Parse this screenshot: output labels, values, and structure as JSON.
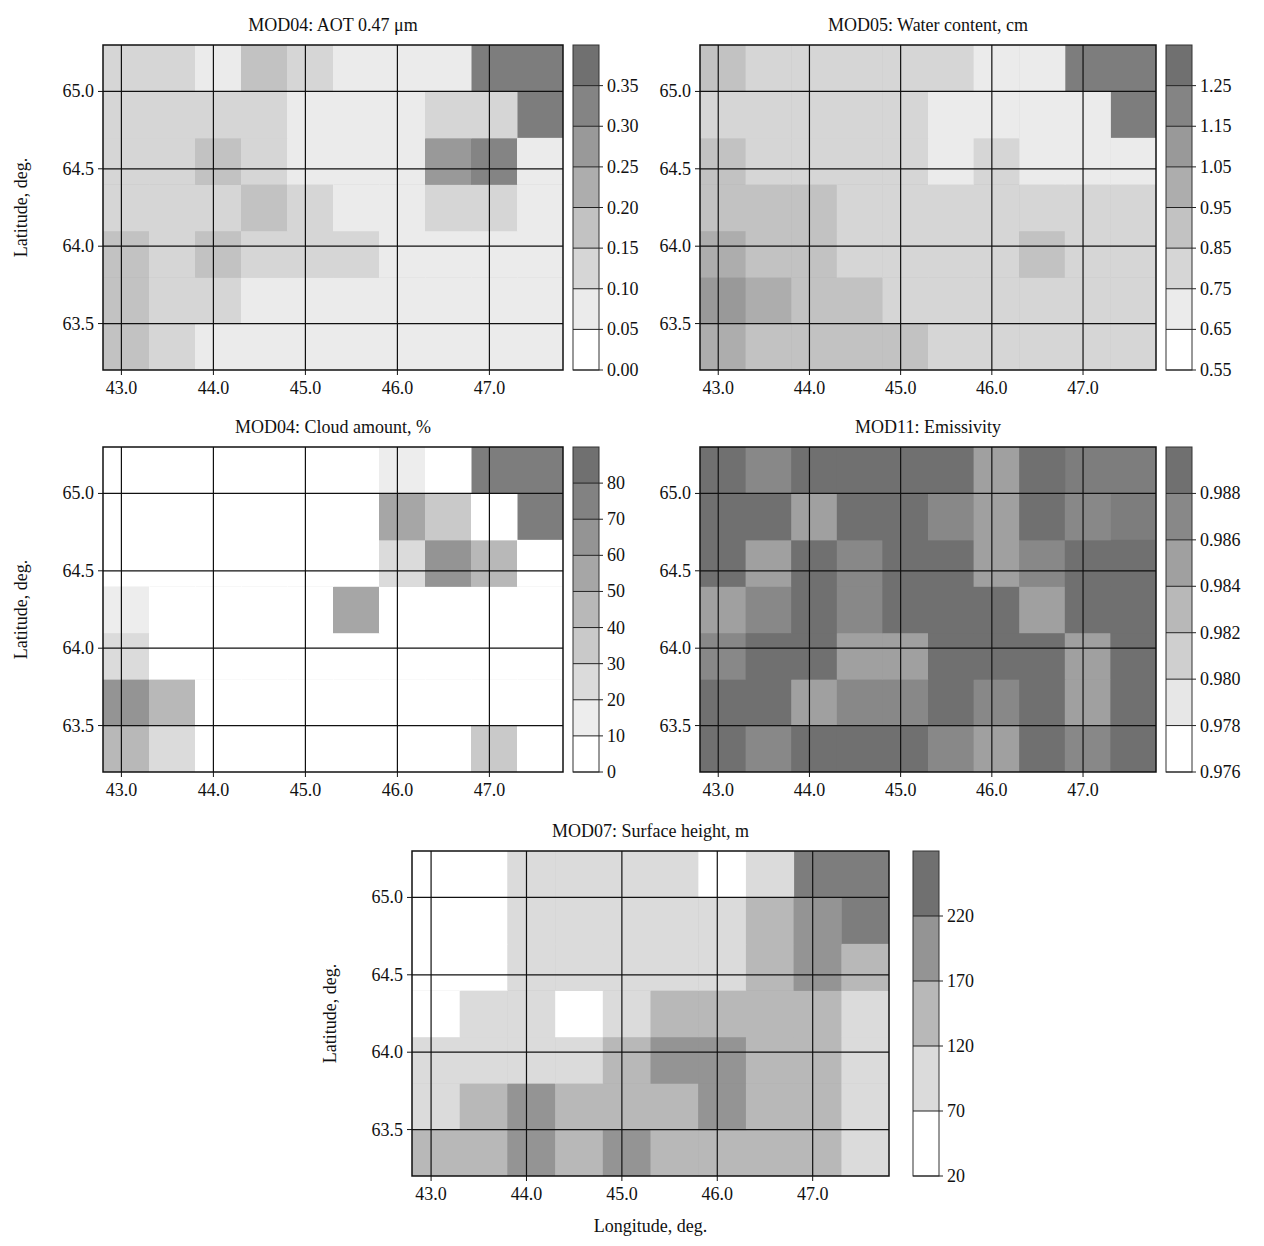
{
  "chart_data": [
    {
      "type": "contour",
      "title": "MOD04: AOT 0.47 μm",
      "ylabel": "Latitude, deg.",
      "grid": true,
      "xlim": [
        42.8,
        47.8
      ],
      "ylim": [
        63.2,
        65.3
      ],
      "xticks": [
        {
          "value": 43,
          "label": "43.0"
        },
        {
          "value": 44,
          "label": "44.0"
        },
        {
          "value": 45,
          "label": "45.0"
        },
        {
          "value": 46,
          "label": "46.0"
        },
        {
          "value": 47,
          "label": "47.0"
        }
      ],
      "yticks": [
        63.5,
        {
          "value": 64,
          "label": "64.0"
        },
        64.5,
        {
          "value": 65,
          "label": "65.0"
        }
      ],
      "x": [
        43.05,
        43.55,
        44.05,
        44.55,
        45.05,
        45.55,
        46.05,
        46.55,
        47.05,
        47.55
      ],
      "y": [
        63.35,
        63.65,
        63.95,
        64.25,
        64.55,
        64.85,
        65.15
      ],
      "cells": [
        [
          0.15,
          0.1,
          0.08,
          0.07,
          0.07,
          0.08,
          0.07,
          0.07,
          0.07,
          0.07
        ],
        [
          0.15,
          0.12,
          0.1,
          0.08,
          0.07,
          0.07,
          0.07,
          0.07,
          0.07,
          0.07
        ],
        [
          0.17,
          0.12,
          0.17,
          0.12,
          0.1,
          0.12,
          0.08,
          0.07,
          0.07,
          0.07
        ],
        [
          0.13,
          0.12,
          0.12,
          0.15,
          0.1,
          0.08,
          0.08,
          0.1,
          0.12,
          0.07
        ],
        [
          0.12,
          0.13,
          0.15,
          0.12,
          0.08,
          0.07,
          0.08,
          0.25,
          0.33,
          0.07
        ],
        [
          0.1,
          0.1,
          0.12,
          0.13,
          0.08,
          0.07,
          0.07,
          0.1,
          0.1,
          null
        ],
        [
          0.1,
          0.1,
          0.08,
          0.15,
          0.12,
          0.08,
          0.07,
          0.07,
          null,
          null
        ]
      ],
      "colorbar": {
        "range": [
          0,
          0.4
        ],
        "ticks": [
          {
            "value": 0,
            "label": "0.00"
          },
          0.05,
          {
            "value": 0.1,
            "label": "0.10"
          },
          0.15,
          {
            "value": 0.2,
            "label": "0.20"
          },
          0.25,
          {
            "value": 0.3,
            "label": "0.30"
          },
          0.35
        ]
      }
    },
    {
      "type": "contour",
      "title": "MOD05: Water content, cm",
      "grid": true,
      "xlim": [
        42.8,
        47.8
      ],
      "ylim": [
        63.2,
        65.3
      ],
      "xticks": [
        {
          "value": 43,
          "label": "43.0"
        },
        {
          "value": 44,
          "label": "44.0"
        },
        {
          "value": 45,
          "label": "45.0"
        },
        {
          "value": 46,
          "label": "46.0"
        },
        {
          "value": 47,
          "label": "47.0"
        }
      ],
      "yticks": [
        63.5,
        {
          "value": 64,
          "label": "64.0"
        },
        64.5,
        {
          "value": 65,
          "label": "65.0"
        }
      ],
      "x": [
        43.05,
        43.55,
        44.05,
        44.55,
        45.05,
        45.55,
        46.05,
        46.55,
        47.05,
        47.55
      ],
      "y": [
        63.35,
        63.65,
        63.95,
        64.25,
        64.55,
        64.85,
        65.15
      ],
      "cells": [
        [
          1.0,
          0.9,
          0.85,
          0.85,
          0.85,
          0.8,
          0.8,
          0.8,
          0.8,
          0.8
        ],
        [
          1.05,
          0.95,
          0.85,
          0.85,
          0.8,
          0.8,
          0.8,
          0.8,
          0.8,
          0.75
        ],
        [
          0.95,
          0.9,
          0.85,
          0.8,
          0.8,
          0.78,
          0.8,
          0.85,
          0.8,
          0.75
        ],
        [
          0.9,
          0.85,
          0.85,
          0.8,
          0.78,
          0.75,
          0.78,
          0.8,
          0.75,
          0.75
        ],
        [
          0.85,
          0.8,
          0.8,
          0.8,
          0.75,
          0.72,
          0.75,
          0.72,
          0.7,
          0.7
        ],
        [
          0.8,
          0.8,
          0.78,
          0.78,
          0.75,
          0.72,
          0.7,
          0.7,
          0.7,
          null
        ],
        [
          0.85,
          0.8,
          0.8,
          0.78,
          0.78,
          0.75,
          0.72,
          0.7,
          null,
          null
        ]
      ],
      "colorbar": {
        "range": [
          0.55,
          1.35
        ],
        "ticks": [
          0.55,
          0.65,
          0.75,
          0.85,
          0.95,
          1.05,
          1.15,
          1.25
        ]
      }
    },
    {
      "type": "contour",
      "title": "MOD04: Cloud amount, %",
      "ylabel": "Latitude, deg.",
      "grid": true,
      "xlim": [
        42.8,
        47.8
      ],
      "ylim": [
        63.2,
        65.3
      ],
      "xticks": [
        {
          "value": 43,
          "label": "43.0"
        },
        {
          "value": 44,
          "label": "44.0"
        },
        {
          "value": 45,
          "label": "45.0"
        },
        {
          "value": 46,
          "label": "46.0"
        },
        {
          "value": 47,
          "label": "47.0"
        }
      ],
      "yticks": [
        63.5,
        {
          "value": 64,
          "label": "64.0"
        },
        64.5,
        {
          "value": 65,
          "label": "65.0"
        }
      ],
      "x": [
        43.05,
        43.55,
        44.05,
        44.55,
        45.05,
        45.55,
        46.05,
        46.55,
        47.05,
        47.55
      ],
      "y": [
        63.35,
        63.65,
        63.95,
        64.25,
        64.55,
        64.85,
        65.15
      ],
      "cells": [
        [
          40,
          20,
          0,
          0,
          0,
          0,
          0,
          0,
          30,
          0
        ],
        [
          60,
          40,
          0,
          0,
          0,
          0,
          0,
          0,
          0,
          0
        ],
        [
          20,
          0,
          0,
          0,
          0,
          0,
          0,
          0,
          0,
          0
        ],
        [
          10,
          0,
          0,
          0,
          0,
          50,
          0,
          0,
          0,
          0
        ],
        [
          0,
          0,
          0,
          0,
          0,
          0,
          20,
          60,
          40,
          0
        ],
        [
          0,
          0,
          0,
          0,
          0,
          0,
          50,
          30,
          0,
          null
        ],
        [
          0,
          0,
          0,
          0,
          0,
          0,
          10,
          0,
          null,
          null
        ]
      ],
      "colorbar": {
        "range": [
          0,
          90
        ],
        "ticks": [
          0,
          10,
          20,
          30,
          40,
          50,
          60,
          70,
          80
        ]
      }
    },
    {
      "type": "contour",
      "title": "MOD11: Emissivity",
      "grid": true,
      "xlim": [
        42.8,
        47.8
      ],
      "ylim": [
        63.2,
        65.3
      ],
      "xticks": [
        {
          "value": 43,
          "label": "43.0"
        },
        {
          "value": 44,
          "label": "44.0"
        },
        {
          "value": 45,
          "label": "45.0"
        },
        {
          "value": 46,
          "label": "46.0"
        },
        {
          "value": 47,
          "label": "47.0"
        }
      ],
      "yticks": [
        63.5,
        {
          "value": 64,
          "label": "64.0"
        },
        64.5,
        {
          "value": 65,
          "label": "65.0"
        }
      ],
      "x": [
        43.05,
        43.55,
        44.05,
        44.55,
        45.05,
        45.55,
        46.05,
        46.55,
        47.05,
        47.55
      ],
      "y": [
        63.35,
        63.65,
        63.95,
        64.25,
        64.55,
        64.85,
        65.15
      ],
      "cells": [
        [
          0.988,
          0.986,
          0.988,
          0.988,
          0.988,
          0.986,
          0.984,
          0.988,
          0.986,
          0.988
        ],
        [
          0.988,
          0.988,
          0.984,
          0.986,
          0.986,
          0.988,
          0.986,
          0.988,
          0.984,
          0.988
        ],
        [
          0.986,
          0.988,
          0.988,
          0.984,
          0.985,
          0.988,
          0.988,
          0.988,
          0.985,
          0.988
        ],
        [
          0.985,
          0.986,
          0.988,
          0.986,
          0.988,
          0.988,
          0.988,
          0.984,
          0.988,
          0.988
        ],
        [
          0.988,
          0.984,
          0.988,
          0.986,
          0.988,
          0.988,
          0.985,
          0.986,
          0.988,
          0.988
        ],
        [
          0.988,
          0.988,
          0.985,
          0.988,
          0.988,
          0.986,
          0.984,
          0.988,
          0.986,
          null
        ],
        [
          0.988,
          0.986,
          0.988,
          0.988,
          0.988,
          0.988,
          0.985,
          0.988,
          null,
          null
        ]
      ],
      "colorbar": {
        "range": [
          0.976,
          0.99
        ],
        "ticks": [
          0.976,
          0.978,
          {
            "value": 0.98,
            "label": "0.980"
          },
          0.982,
          0.984,
          0.986,
          0.988
        ]
      }
    },
    {
      "type": "contour",
      "title": "MOD07: Surface height, m",
      "xlabel": "Longitude, deg.",
      "ylabel": "Latitude, deg.",
      "grid": true,
      "xlim": [
        42.8,
        47.8
      ],
      "ylim": [
        63.2,
        65.3
      ],
      "xticks": [
        {
          "value": 43,
          "label": "43.0"
        },
        {
          "value": 44,
          "label": "44.0"
        },
        {
          "value": 45,
          "label": "45.0"
        },
        {
          "value": 46,
          "label": "46.0"
        },
        {
          "value": 47,
          "label": "47.0"
        }
      ],
      "yticks": [
        63.5,
        {
          "value": 64,
          "label": "64.0"
        },
        64.5,
        {
          "value": 65,
          "label": "65.0"
        }
      ],
      "x": [
        43.05,
        43.55,
        44.05,
        44.55,
        45.05,
        45.55,
        46.05,
        46.55,
        47.05,
        47.55
      ],
      "y": [
        63.35,
        63.65,
        63.95,
        64.25,
        64.55,
        64.85,
        65.15
      ],
      "cells": [
        [
          120,
          150,
          180,
          160,
          170,
          140,
          160,
          150,
          130,
          100
        ],
        [
          100,
          130,
          170,
          120,
          130,
          150,
          175,
          140,
          120,
          90
        ],
        [
          90,
          90,
          100,
          110,
          150,
          180,
          175,
          160,
          130,
          100
        ],
        [
          60,
          80,
          90,
          60,
          100,
          130,
          120,
          150,
          130,
          100
        ],
        [
          40,
          50,
          70,
          90,
          110,
          100,
          70,
          130,
          190,
          150
        ],
        [
          40,
          30,
          80,
          90,
          80,
          100,
          70,
          130,
          170,
          null
        ],
        [
          60,
          40,
          80,
          90,
          80,
          70,
          60,
          90,
          null,
          null
        ]
      ],
      "colorbar": {
        "range": [
          20,
          270
        ],
        "ticks": [
          20,
          70,
          120,
          170,
          220
        ]
      }
    }
  ]
}
